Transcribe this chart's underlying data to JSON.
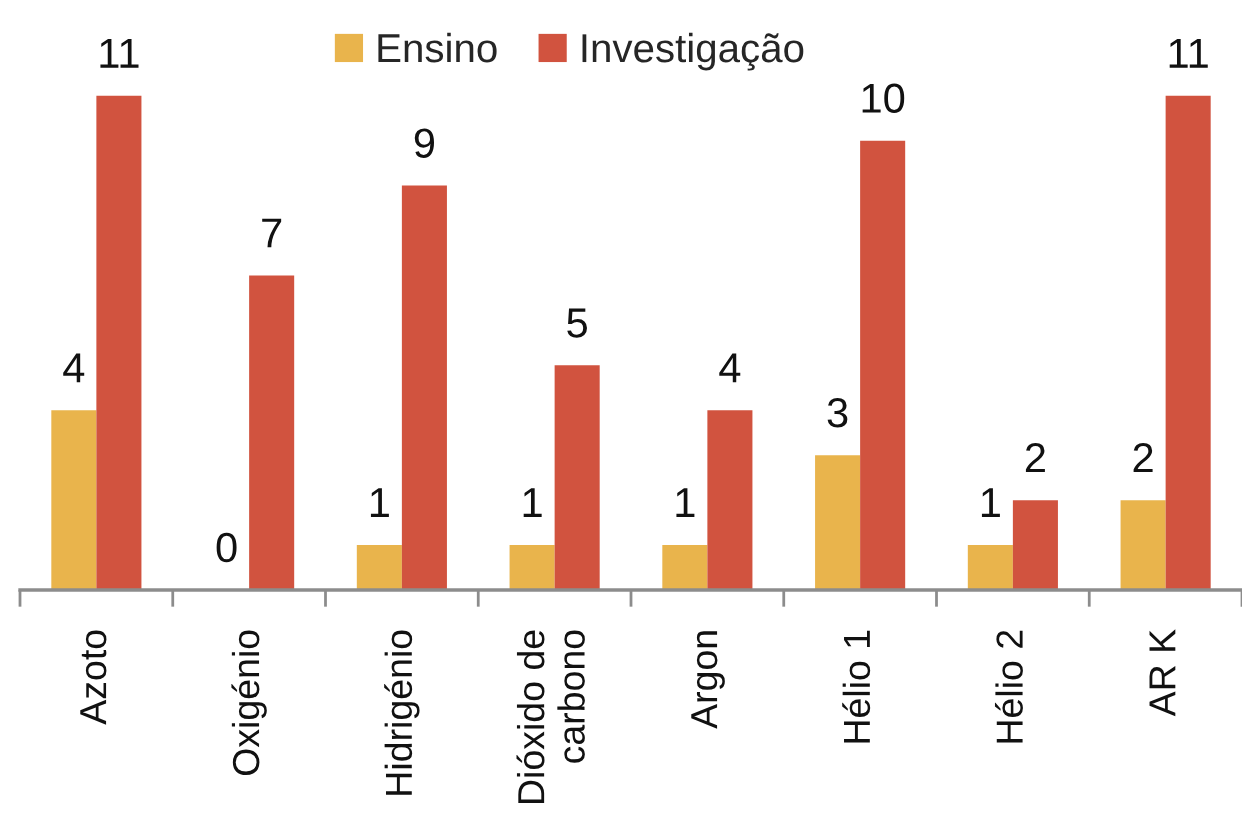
{
  "chart_data": {
    "type": "bar",
    "categories": [
      "Azoto",
      "Oxigénio",
      "Hidrigénio",
      "Dióxido de\ncarbono",
      "Argon",
      "Hélio 1",
      "Hélio 2",
      "AR K"
    ],
    "series": [
      {
        "name": "Ensino",
        "color": "#e9b44c",
        "values": [
          4,
          0,
          1,
          1,
          1,
          3,
          1,
          2
        ]
      },
      {
        "name": "Investigação",
        "color": "#d1533f",
        "values": [
          11,
          7,
          9,
          5,
          4,
          10,
          2,
          11
        ]
      }
    ],
    "data_labels": true,
    "legend": "top",
    "tick_labels": "x"
  }
}
